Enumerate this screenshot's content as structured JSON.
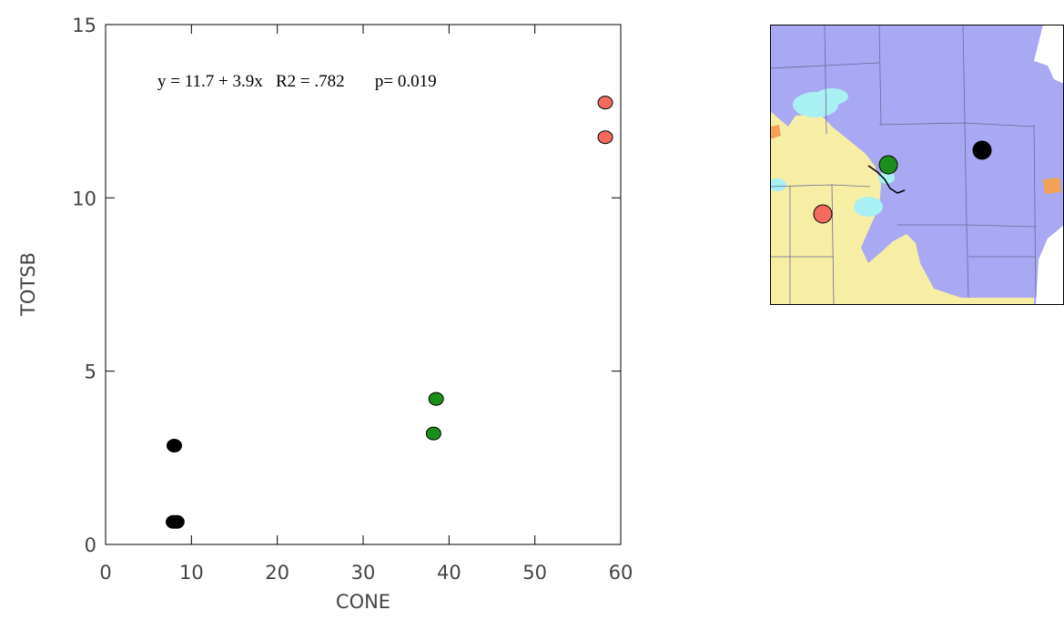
{
  "chart_data": {
    "type": "scatter",
    "title": "",
    "xlabel": "CONE",
    "ylabel": "TOTSB",
    "xlim": [
      0,
      60
    ],
    "ylim": [
      0,
      15
    ],
    "x_ticks": [
      0,
      10,
      20,
      30,
      40,
      50,
      60
    ],
    "y_ticks": [
      0,
      5,
      10,
      15
    ],
    "grid": false,
    "annotation": "y = 11.7 + 3.9x   R2 = .782       p= 0.019",
    "series": [
      {
        "color": "#000000",
        "points": [
          [
            8.0,
            2.85
          ],
          [
            7.9,
            0.65
          ],
          [
            8.3,
            0.65
          ]
        ]
      },
      {
        "color": "#1a8f1a",
        "points": [
          [
            38.5,
            4.2
          ],
          [
            38.2,
            3.2
          ]
        ]
      },
      {
        "color": "#f26b5e",
        "points": [
          [
            58.2,
            12.75
          ],
          [
            58.2,
            11.75
          ]
        ]
      }
    ]
  },
  "map": {
    "colors": {
      "water_region": "#a9a8f2",
      "land_region": "#f7eea6",
      "lake": "#a8f0f4",
      "accent": "#f2a257",
      "border": "#000000"
    },
    "markers": [
      {
        "color": "#000000"
      },
      {
        "color": "#1a8f1a"
      },
      {
        "color": "#f26b5e"
      }
    ]
  }
}
